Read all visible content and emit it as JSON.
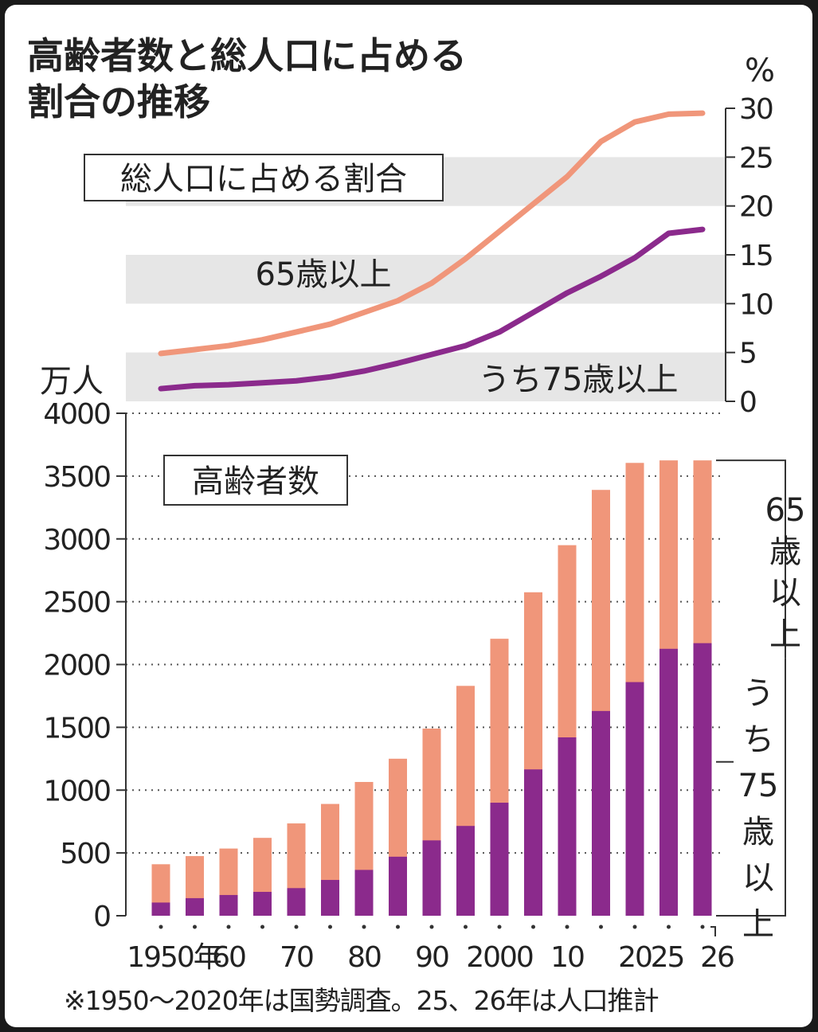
{
  "title": [
    "高齢者数と総人口に占める",
    "割合の推移"
  ],
  "footnote": "※1950〜2020年は国勢調査。25、26年は人口推計",
  "colors": {
    "aged65": "#f0967a",
    "aged75": "#8b2a8c",
    "band": "#e6e6e6",
    "text": "#222222"
  },
  "chart_data": [
    {
      "type": "line",
      "box_label": "総人口に占める割合",
      "unit": "%",
      "ylim": [
        0,
        30
      ],
      "y_ticks": [
        "30",
        "25",
        "20",
        "15",
        "10",
        "5",
        "0"
      ],
      "x": [
        1950,
        1955,
        1960,
        1965,
        1970,
        1975,
        1980,
        1985,
        1990,
        1995,
        2000,
        2005,
        2010,
        2015,
        2020,
        2025,
        2026
      ],
      "series": [
        {
          "name": "65歳以上",
          "values": [
            4.9,
            5.3,
            5.7,
            6.3,
            7.1,
            7.9,
            9.1,
            10.3,
            12.1,
            14.6,
            17.4,
            20.2,
            23.0,
            26.6,
            28.6,
            29.4,
            29.5
          ]
        },
        {
          "name": "うち75歳以上",
          "values": [
            1.3,
            1.6,
            1.7,
            1.9,
            2.1,
            2.5,
            3.1,
            3.9,
            4.8,
            5.7,
            7.1,
            9.1,
            11.1,
            12.8,
            14.7,
            17.2,
            17.6
          ]
        }
      ]
    },
    {
      "type": "bar",
      "box_label": "高齢者数",
      "unit": "万人",
      "ylim": [
        0,
        4000
      ],
      "y_ticks": [
        "4000",
        "3500",
        "3000",
        "2500",
        "2000",
        "1500",
        "1000",
        "500",
        "0"
      ],
      "x_tick_labels": [
        "1950年",
        "60",
        "70",
        "80",
        "90",
        "2000",
        "10",
        "20",
        "25",
        "26"
      ],
      "x": [
        1950,
        1955,
        1960,
        1965,
        1970,
        1975,
        1980,
        1985,
        1990,
        1995,
        2000,
        2005,
        2010,
        2015,
        2020,
        2025,
        2026
      ],
      "series": [
        {
          "name": "65歳以上",
          "values": [
            410,
            475,
            535,
            620,
            735,
            890,
            1065,
            1250,
            1490,
            1830,
            2205,
            2575,
            2950,
            3390,
            3605,
            3625,
            3625
          ]
        },
        {
          "name": "うち75歳以上",
          "values": [
            105,
            140,
            165,
            190,
            220,
            285,
            365,
            470,
            600,
            715,
            900,
            1165,
            1420,
            1630,
            1860,
            2125,
            2170
          ]
        }
      ],
      "side_labels": {
        "aged65": "65歳以上",
        "aged75": "うち75歳以上"
      }
    }
  ]
}
